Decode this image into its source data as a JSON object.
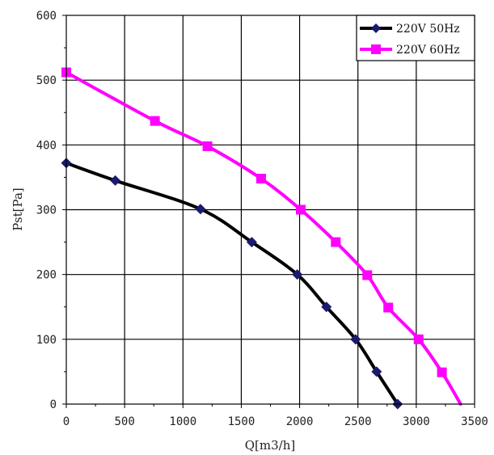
{
  "chart_data": {
    "type": "line",
    "xlabel": "Q[m3/h]",
    "ylabel": "Pst[Pa]",
    "xlim": [
      0,
      3500
    ],
    "ylim": [
      0,
      600
    ],
    "x_ticks": [
      "0",
      "500",
      "1000",
      "1500",
      "2000",
      "2500",
      "3000",
      "3500"
    ],
    "y_ticks": [
      "0",
      "100",
      "200",
      "300",
      "400",
      "500",
      "600"
    ],
    "grid": true,
    "legend_position": "top-right",
    "series": [
      {
        "name": "220V 50Hz",
        "color": "#000000",
        "marker": "diamond",
        "marker_color": "#1a1a6e",
        "x": [
          0,
          420,
          1150,
          1590,
          1980,
          2230,
          2480,
          2660,
          2840
        ],
        "y": [
          372,
          345,
          301,
          250,
          200,
          150,
          100,
          50,
          0
        ],
        "smooth": true
      },
      {
        "name": "220V 60Hz",
        "color": "#ff00ff",
        "marker": "square",
        "marker_color": "#ff00ff",
        "x": [
          0,
          760,
          1210,
          1670,
          2010,
          2310,
          2580,
          2760,
          3020,
          3220,
          3380
        ],
        "y": [
          512,
          437,
          398,
          348,
          300,
          250,
          199,
          149,
          100,
          49,
          0
        ],
        "marker_count": 10,
        "smooth": true
      }
    ]
  }
}
